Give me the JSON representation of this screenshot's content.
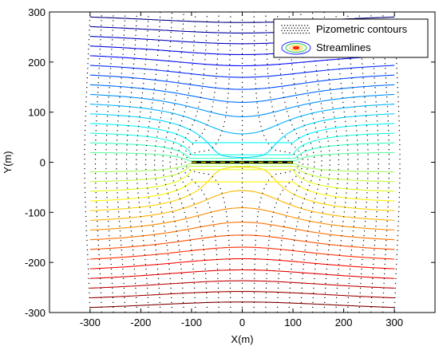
{
  "chart_data": {
    "type": "line",
    "title": "",
    "xlabel": "X(m)",
    "ylabel": "Y(m)",
    "xlim": [
      -380,
      380
    ],
    "ylim": [
      -300,
      300
    ],
    "xticks": [
      -300,
      -200,
      -100,
      0,
      100,
      200,
      300
    ],
    "yticks": [
      -300,
      -200,
      -100,
      0,
      100,
      200,
      300
    ],
    "x_tick_labels": [
      "-300",
      "-200",
      "-100",
      "0",
      "100",
      "200",
      "300"
    ],
    "y_tick_labels": [
      "-300",
      "-200",
      "-100",
      "0",
      "100",
      "200",
      "300"
    ],
    "grid": false,
    "legend": {
      "position": "top-right",
      "entries": [
        {
          "label": "Pizometric contours",
          "style": "dotted",
          "color": "#000000"
        },
        {
          "label": "Streamlines",
          "style": "filled-contour",
          "color": "#2020ff"
        }
      ]
    },
    "series": [
      {
        "type": "streamlines",
        "count": 31,
        "x_range": [
          -300,
          300
        ],
        "y_range": [
          -290,
          290
        ],
        "colormap": "jet"
      },
      {
        "type": "piezometric-contours",
        "count": 27,
        "x_range": [
          -300,
          300
        ],
        "y_range": [
          -300,
          300
        ],
        "color": "#000000",
        "style": "dotted"
      },
      {
        "type": "segment",
        "x": [
          -100,
          100
        ],
        "y": [
          0,
          0
        ],
        "color": "#000000",
        "style": "solid-dashed-yellow"
      }
    ]
  }
}
